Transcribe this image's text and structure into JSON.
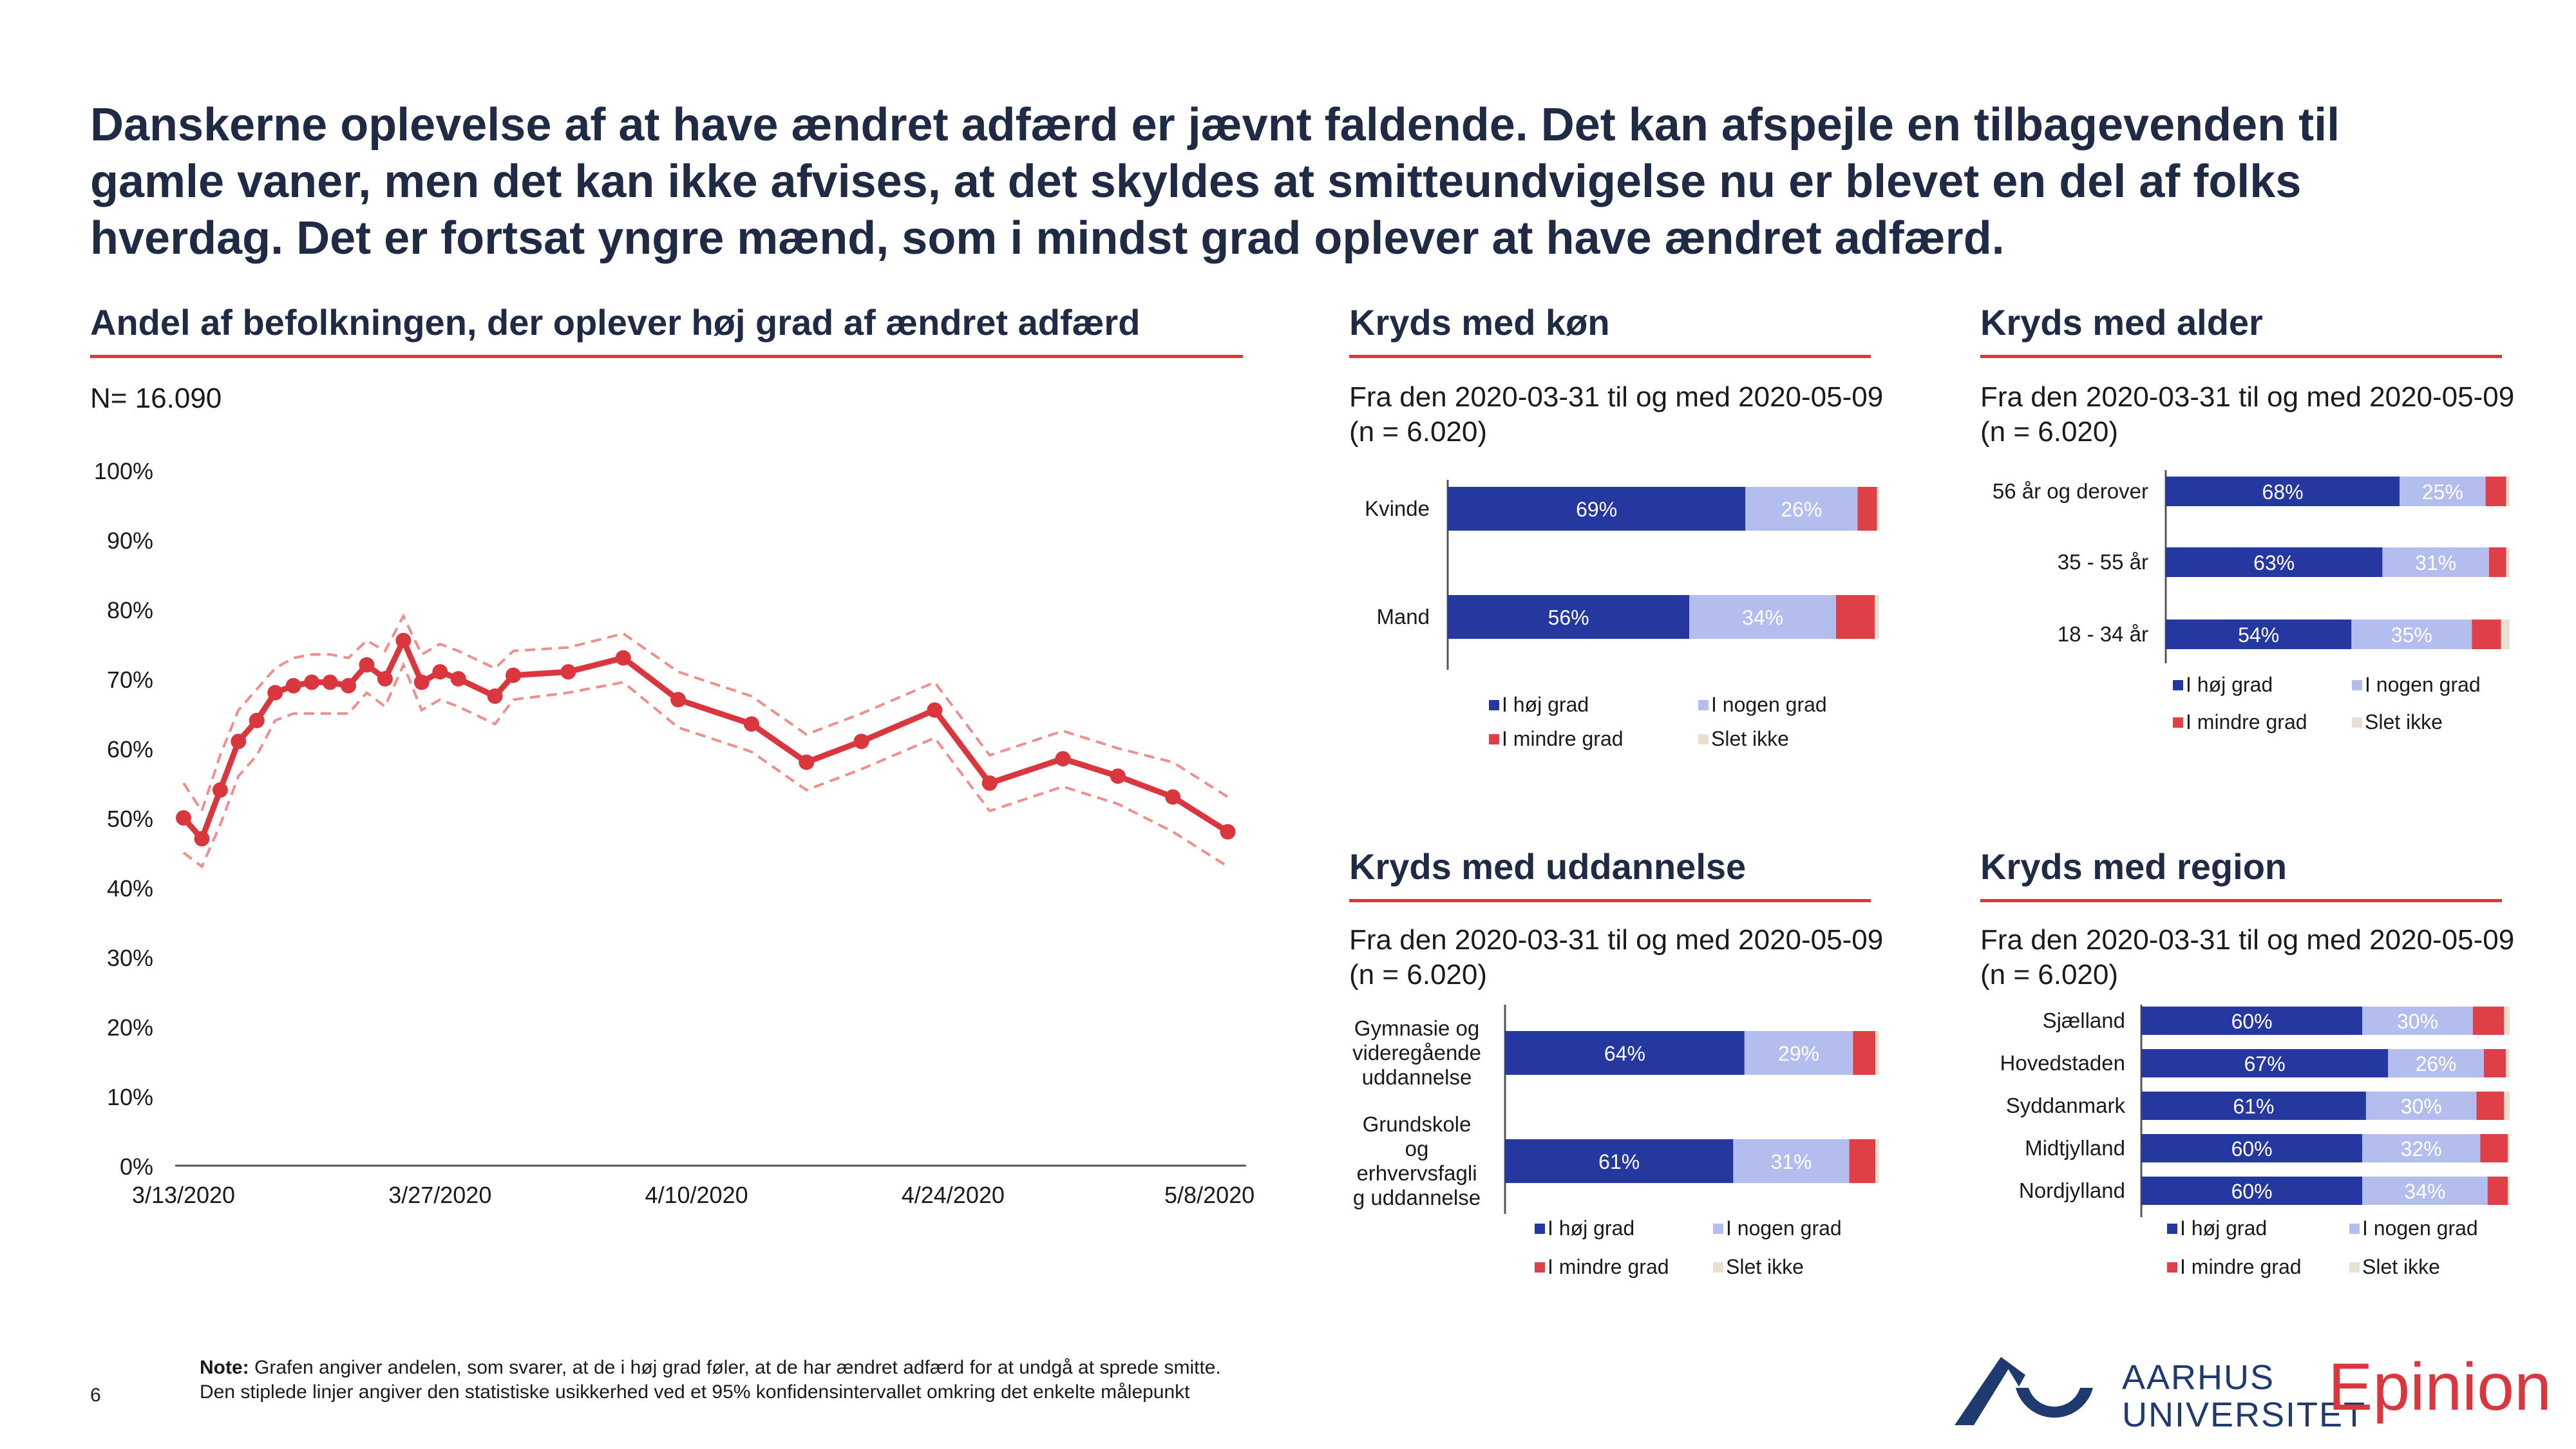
{
  "headline": "Danskerne oplevelse af at have ændret adfærd er jævnt faldende. Det kan afspejle en tilbagevenden til gamle vaner, men det kan ikke afvises, at det skyldes at smitteundvigelse nu er blevet en del af folks hverdag. Det er fortsat yngre mænd, som i mindst grad oplever at have ændret adfærd.",
  "note_label": "Note:",
  "note_line1": " Grafen angiver andelen, som svarer, at de i høj grad føler, at de har ændret adfærd for at undgå at sprede smitte.",
  "note_line2": "Den stiplede linjer angiver den statistiske usikkerhed ved et 95% konfidensintervallet omkring det enkelte målepunkt",
  "page_number": "6",
  "logo_au_line1": "AARHUS",
  "logo_au_line2": "UNIVERSITET",
  "logo_epinion": "Epinion",
  "colors": {
    "hoej": "#2538a0",
    "nogen": "#b3bdee",
    "mindre": "#df4047",
    "slet": "#e8e0d0",
    "line": "#d9363e",
    "ci": "#f08e8e",
    "accent": "#d9363e"
  },
  "legend_labels": [
    "I høj grad",
    "I nogen grad",
    "I mindre grad",
    "Slet ikke"
  ],
  "chart_data": [
    {
      "type": "line",
      "title": "Andel af befolkningen, der oplever høj grad af ændret adfærd",
      "subtitle": "N= 16.090",
      "ylim": [
        0,
        100
      ],
      "y_ticks": [
        "0%",
        "10%",
        "20%",
        "30%",
        "40%",
        "50%",
        "60%",
        "70%",
        "80%",
        "90%",
        "100%"
      ],
      "x_ticks": [
        "3/13/2020",
        "3/27/2020",
        "4/10/2020",
        "4/24/2020",
        "5/8/2020"
      ],
      "x_range": [
        "2020-03-13",
        "2020-05-10"
      ],
      "series": [
        {
          "name": "",
          "x": [
            "2020-03-13",
            "2020-03-14",
            "2020-03-15",
            "2020-03-16",
            "2020-03-17",
            "2020-03-18",
            "2020-03-19",
            "2020-03-20",
            "2020-03-21",
            "2020-03-22",
            "2020-03-23",
            "2020-03-24",
            "2020-03-25",
            "2020-03-26",
            "2020-03-27",
            "2020-03-28",
            "2020-03-30",
            "2020-03-31",
            "2020-04-03",
            "2020-04-06",
            "2020-04-09",
            "2020-04-13",
            "2020-04-16",
            "2020-04-19",
            "2020-04-23",
            "2020-04-26",
            "2020-04-30",
            "2020-05-03",
            "2020-05-06",
            "2020-05-09"
          ],
          "values": [
            50,
            47,
            54,
            61,
            64,
            68,
            69,
            69.5,
            69.5,
            69,
            72,
            70,
            75.5,
            69.5,
            71,
            70,
            67.5,
            70.5,
            71,
            73,
            67,
            63.5,
            58,
            61,
            65.5,
            55,
            58.5,
            56,
            53,
            48
          ],
          "lower": [
            45,
            43,
            49,
            56,
            59,
            64,
            65,
            65,
            65,
            65,
            68,
            66,
            72,
            65.5,
            67,
            66,
            63.5,
            67,
            68,
            69.5,
            63,
            59.5,
            54,
            57,
            61.5,
            51,
            54.5,
            52,
            48,
            43
          ],
          "upper": [
            55,
            51,
            59,
            65.5,
            68.5,
            71.5,
            73,
            73.5,
            73.5,
            73,
            75.5,
            74,
            79,
            73.5,
            75,
            74,
            71.5,
            74,
            74.5,
            76.5,
            71,
            67.5,
            62,
            65,
            69.5,
            59,
            62.5,
            60,
            58,
            53
          ]
        }
      ]
    },
    {
      "type": "bar",
      "title": "Kryds med køn",
      "subtitle_line1": "Fra den 2020-03-31 til og med 2020-05-09",
      "subtitle_line2": "(n = 6.020)",
      "categories": [
        "Kvinde",
        "Mand"
      ],
      "series": [
        {
          "name": "I høj grad",
          "values": [
            69,
            56
          ],
          "labels": [
            "69%",
            "56%"
          ]
        },
        {
          "name": "I nogen grad",
          "values": [
            26,
            34
          ],
          "labels": [
            "26%",
            "34%"
          ]
        },
        {
          "name": "I mindre grad",
          "values": [
            4.5,
            9
          ],
          "labels": [
            "",
            ""
          ]
        },
        {
          "name": "Slet ikke",
          "values": [
            0.5,
            1
          ],
          "labels": [
            "",
            ""
          ]
        }
      ]
    },
    {
      "type": "bar",
      "title": "Kryds med alder",
      "subtitle_line1": "Fra den 2020-03-31 til og med 2020-05-09",
      "subtitle_line2": "(n = 6.020)",
      "categories": [
        "56 år og derover",
        "35 - 55 år",
        "18 - 34 år"
      ],
      "series": [
        {
          "name": "I høj grad",
          "values": [
            68,
            63,
            54
          ],
          "labels": [
            "68%",
            "63%",
            "54%"
          ]
        },
        {
          "name": "I nogen grad",
          "values": [
            25,
            31,
            35
          ],
          "labels": [
            "25%",
            "31%",
            "35%"
          ]
        },
        {
          "name": "I mindre grad",
          "values": [
            6,
            5,
            8.5
          ],
          "labels": [
            "",
            "",
            ""
          ]
        },
        {
          "name": "Slet ikke",
          "values": [
            1,
            1,
            2.5
          ],
          "labels": [
            "",
            "",
            ""
          ]
        }
      ]
    },
    {
      "type": "bar",
      "title": "Kryds med uddannelse",
      "subtitle_line1": "Fra den 2020-03-31 til og med 2020-05-09",
      "subtitle_line2": "(n = 6.020)",
      "categories": [
        [
          "Gymnasie og",
          "videregående",
          "uddannelse"
        ],
        [
          "Grundskole",
          "og",
          "erhvervsfagli",
          "g uddannelse"
        ]
      ],
      "series": [
        {
          "name": "I høj grad",
          "values": [
            64,
            61
          ],
          "labels": [
            "64%",
            "61%"
          ]
        },
        {
          "name": "I nogen grad",
          "values": [
            29,
            31
          ],
          "labels": [
            "29%",
            "31%"
          ]
        },
        {
          "name": "I mindre grad",
          "values": [
            6,
            7
          ],
          "labels": [
            "",
            ""
          ]
        },
        {
          "name": "Slet ikke",
          "values": [
            1,
            1
          ],
          "labels": [
            "",
            ""
          ]
        }
      ]
    },
    {
      "type": "bar",
      "title": "Kryds med region",
      "subtitle_line1": "Fra den 2020-03-31 til og med 2020-05-09",
      "subtitle_line2": "(n = 6.020)",
      "categories": [
        "Sjælland",
        "Hovedstaden",
        "Syddanmark",
        "Midtjylland",
        "Nordjylland"
      ],
      "series": [
        {
          "name": "I høj grad",
          "values": [
            60,
            67,
            61,
            60,
            60
          ],
          "labels": [
            "60%",
            "67%",
            "61%",
            "60%",
            "60%"
          ]
        },
        {
          "name": "I nogen grad",
          "values": [
            30,
            26,
            30,
            32,
            34
          ],
          "labels": [
            "30%",
            "26%",
            "30%",
            "32%",
            "34%"
          ]
        },
        {
          "name": "I mindre grad",
          "values": [
            8.5,
            6,
            7.5,
            7.5,
            5.5
          ],
          "labels": [
            "",
            "",
            "",
            "",
            ""
          ]
        },
        {
          "name": "Slet ikke",
          "values": [
            1.5,
            1,
            1.5,
            0.5,
            0.5
          ],
          "labels": [
            "",
            "",
            "",
            "",
            ""
          ]
        }
      ]
    }
  ]
}
